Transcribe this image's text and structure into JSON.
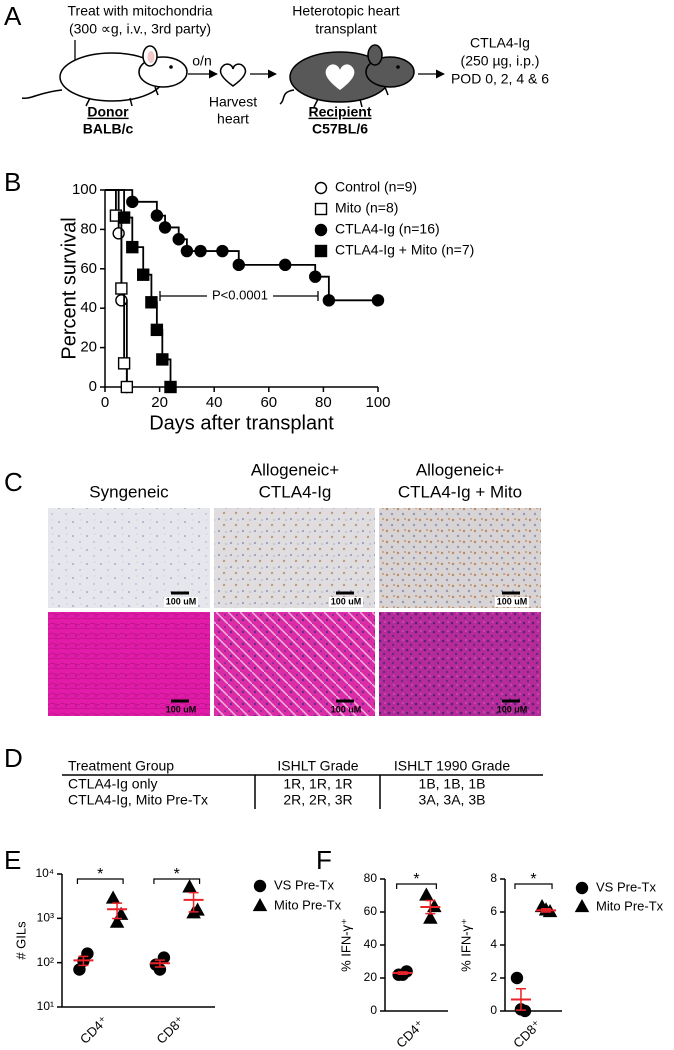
{
  "panel_labels": [
    "A",
    "B",
    "C",
    "D",
    "E",
    "F"
  ],
  "schematic": {
    "treatment": [
      "Treat with mitochondria",
      "(300 ∝g, i.v., 3rd party)"
    ],
    "overnight": "o/n",
    "harvest": [
      "Harvest",
      "heart"
    ],
    "donor": [
      "Donor",
      "BALB/c"
    ],
    "transplant": [
      "Heterotopic heart",
      "transplant"
    ],
    "recipient": [
      "Recipient",
      "C57BL/6"
    ],
    "therapy": [
      "CTLA4-Ig",
      "(250 µg,  i.p.)",
      "POD 0, 2, 4 & 6"
    ]
  },
  "chart_data": [
    {
      "type": "survival",
      "xlabel": "Days after transplant",
      "ylabel": "Percent survival",
      "xlim": [
        0,
        100
      ],
      "xticks": [
        0,
        20,
        40,
        60,
        80,
        100
      ],
      "ylim": [
        0,
        100
      ],
      "yticks": [
        0,
        20,
        40,
        60,
        80,
        100
      ],
      "annotation": "P<0.0001",
      "series": [
        {
          "name": "Control (n=9)",
          "color": "#000000",
          "marker": "circle",
          "filled": false,
          "x": [
            0,
            5,
            6,
            8
          ],
          "values": [
            100,
            78,
            44,
            0
          ]
        },
        {
          "name": "Mito (n=8)",
          "color": "#000000",
          "marker": "square",
          "filled": false,
          "x": [
            0,
            4,
            6,
            7,
            8
          ],
          "values": [
            100,
            87,
            50,
            12,
            0
          ]
        },
        {
          "name": "CTLA4-Ig (n=16)",
          "color": "#000000",
          "marker": "circle",
          "filled": true,
          "x": [
            0,
            10,
            19,
            22,
            27,
            30,
            35,
            43,
            49,
            66,
            77,
            82,
            100
          ],
          "values": [
            100,
            94,
            87,
            81,
            75,
            69,
            69,
            69,
            62,
            62,
            56,
            44,
            44
          ]
        },
        {
          "name": "CTLA4-Ig + Mito (n=7)",
          "color": "#000000",
          "marker": "square",
          "filled": true,
          "x": [
            0,
            7,
            10,
            14,
            17,
            19,
            21,
            24
          ],
          "values": [
            100,
            86,
            71,
            57,
            43,
            29,
            14,
            0
          ]
        }
      ]
    },
    {
      "type": "scatter",
      "ylabel": "# GILs",
      "log_y": true,
      "ylim": [
        10,
        10000
      ],
      "yticks": [
        {
          "value": 10,
          "label": "10¹"
        },
        {
          "value": 100,
          "label": "10²"
        },
        {
          "value": 1000,
          "label": "10³"
        },
        {
          "value": 10000,
          "label": "10⁴"
        }
      ],
      "categories": [
        "CD4⁺",
        "CD8⁺"
      ],
      "significance": [
        "*",
        "*"
      ],
      "summary_color": "#e8232a",
      "series": [
        {
          "name": "VS Pre-Tx",
          "color": "#000000",
          "marker": "circle",
          "values": [
            [
              70,
              160,
              110
            ],
            [
              90,
              130,
              70
            ]
          ],
          "means": [
            113,
            97
          ],
          "errors": [
            26,
            17
          ]
        },
        {
          "name": "Mito Pre-Tx",
          "color": "#000000",
          "marker": "triangle",
          "values": [
            [
              2800,
              1200,
              800
            ],
            [
              5000,
              1500,
              1300
            ]
          ],
          "means": [
            1600,
            2600
          ],
          "errors": [
            610,
            1200
          ]
        }
      ]
    },
    {
      "type": "scatter",
      "ylabel": "% IFN-γ⁺",
      "ylim": [
        0,
        80
      ],
      "yticks": [
        0,
        20,
        40,
        60,
        80
      ],
      "categories": [
        "CD4⁺"
      ],
      "significance": [
        "*"
      ],
      "summary_color": "#e8232a",
      "series": [
        {
          "color": "#000000",
          "marker": "circle",
          "values": [
            [
              22,
              24,
              22
            ]
          ],
          "means": [
            23
          ],
          "errors": [
            0.7
          ]
        },
        {
          "color": "#000000",
          "marker": "triangle",
          "values": [
            [
              70,
              63,
              56
            ]
          ],
          "means": [
            63
          ],
          "errors": [
            4
          ]
        }
      ]
    },
    {
      "type": "scatter",
      "ylabel": "% IFN-γ⁺",
      "ylim": [
        0,
        8
      ],
      "yticks": [
        0,
        2,
        4,
        6,
        8
      ],
      "categories": [
        "CD8⁺"
      ],
      "significance": [
        "*"
      ],
      "summary_color": "#e8232a",
      "series": [
        {
          "name": "VS Pre-Tx",
          "color": "#000000",
          "marker": "circle",
          "values": [
            [
              2,
              0,
              0.1
            ]
          ],
          "means": [
            0.7
          ],
          "errors": [
            0.65
          ]
        },
        {
          "name": "Mito Pre-Tx",
          "color": "#000000",
          "marker": "triangle",
          "values": [
            [
              6.3,
              6,
              6.1
            ]
          ],
          "means": [
            6.1
          ],
          "errors": [
            0.1
          ]
        }
      ]
    }
  ],
  "histology": {
    "headers": [
      [
        "Syngeneic"
      ],
      [
        "Allogeneic+",
        "CTLA4-Ig"
      ],
      [
        "Allogeneic+",
        "CTLA4-Ig + Mito"
      ]
    ],
    "scale_bar_labels": [
      "100 uM",
      "100 uM",
      "100 uM",
      "100 uM",
      "100 uM",
      "100 uM"
    ]
  },
  "table": {
    "header": [
      "Treatment Group",
      "ISHLT Grade",
      "ISHLT 1990 Grade"
    ],
    "rows": [
      [
        "CTLA4-Ig only",
        "1R, 1R, 1R",
        "1B, 1B, 1B"
      ],
      [
        "CTLA4-Ig, Mito Pre-Tx",
        "2R, 2R, 3R",
        "3A, 3A, 3B"
      ]
    ]
  }
}
